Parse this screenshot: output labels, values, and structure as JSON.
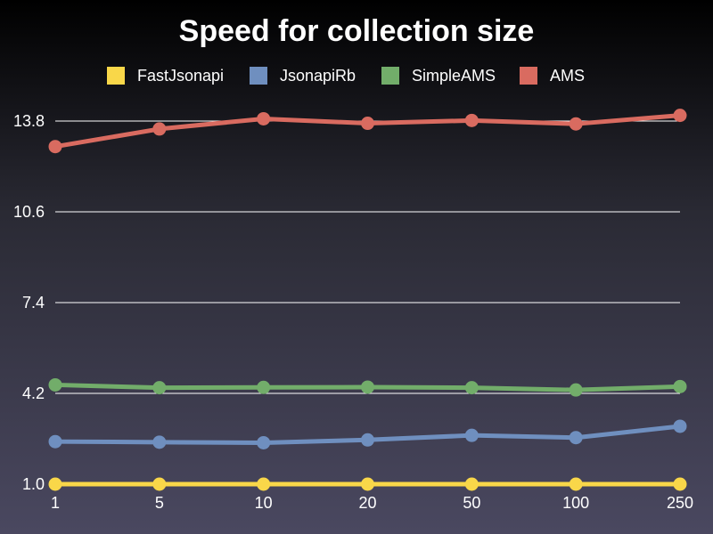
{
  "chart_data": {
    "type": "line",
    "title": "Speed for collection size",
    "xlabel": "",
    "ylabel": "",
    "categories": [
      "1",
      "5",
      "10",
      "20",
      "50",
      "100",
      "250"
    ],
    "yticks": [
      "1.0",
      "4.2",
      "7.4",
      "10.6",
      "13.8"
    ],
    "ylim": [
      1.0,
      13.8
    ],
    "grid": true,
    "legend_position": "top",
    "series": [
      {
        "name": "FastJsonapi",
        "color": "#f9d749",
        "values": [
          1.0,
          1.0,
          1.0,
          1.0,
          1.0,
          1.0,
          1.0
        ]
      },
      {
        "name": "JsonapiRb",
        "color": "#6f8fbf",
        "values": [
          2.5,
          2.48,
          2.46,
          2.56,
          2.72,
          2.64,
          3.04
        ]
      },
      {
        "name": "SimpleAMS",
        "color": "#72ad6a",
        "values": [
          4.5,
          4.4,
          4.41,
          4.42,
          4.4,
          4.32,
          4.44
        ]
      },
      {
        "name": "AMS",
        "color": "#d96b60",
        "values": [
          12.9,
          13.52,
          13.88,
          13.72,
          13.82,
          13.7,
          14.0
        ]
      }
    ]
  }
}
